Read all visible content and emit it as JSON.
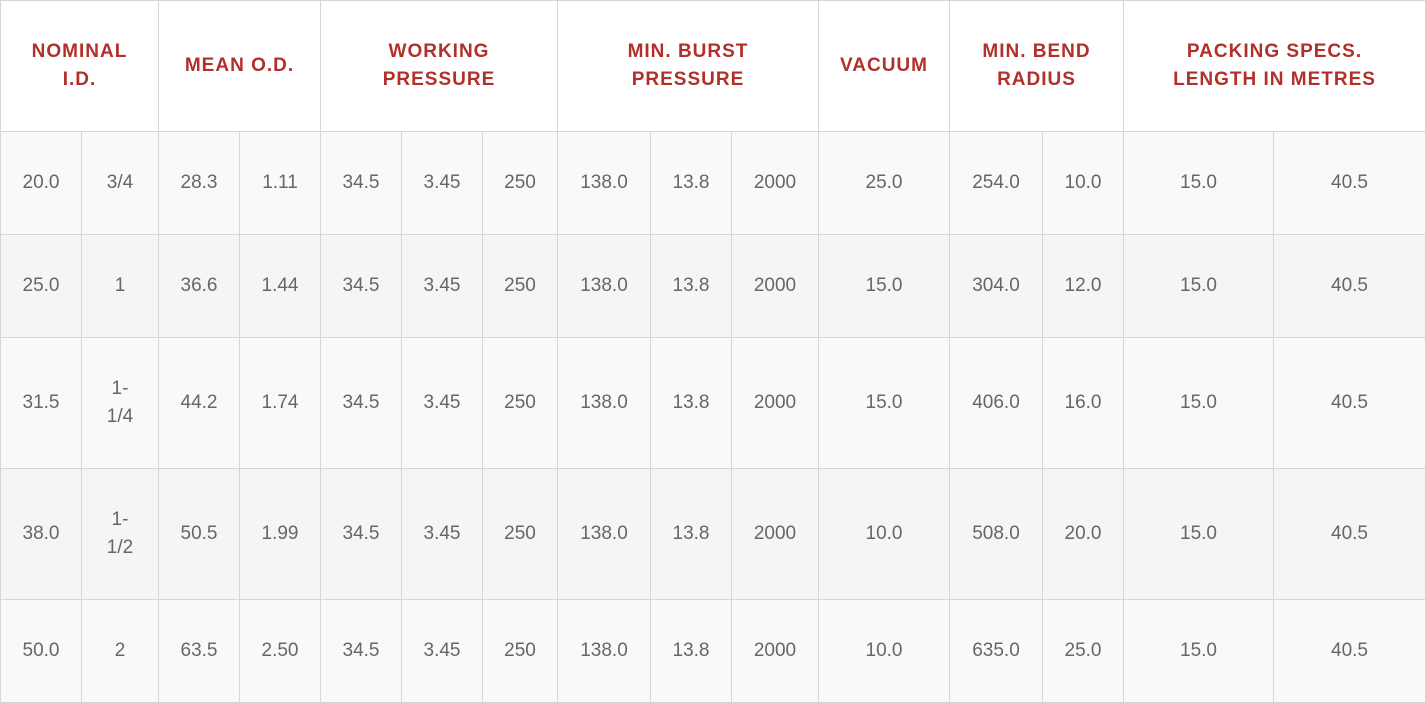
{
  "headers": {
    "nominal_id": [
      "NOMINAL",
      "I.D."
    ],
    "mean_od": [
      "MEAN O.D."
    ],
    "working_pressure": [
      "WORKING",
      "PRESSURE"
    ],
    "min_burst_pressure": [
      "MIN. BURST",
      "PRESSURE"
    ],
    "vacuum": [
      "VACUUM"
    ],
    "min_bend_radius": [
      "MIN. BEND",
      "RADIUS"
    ],
    "packing_specs": [
      "PACKING SPECS.",
      "LENGTH IN METRES"
    ]
  },
  "rows": [
    {
      "nominal_id_mm": "20.0",
      "nominal_id_in": [
        "3/4"
      ],
      "mean_od_mm": "28.3",
      "mean_od_in": "1.11",
      "wp_1": "34.5",
      "wp_2": "3.45",
      "wp_3": "250",
      "bp_1": "138.0",
      "bp_2": "13.8",
      "bp_3": "2000",
      "vacuum": "25.0",
      "bend_1": "254.0",
      "bend_2": "10.0",
      "pack_1": "15.0",
      "pack_2": "40.5"
    },
    {
      "nominal_id_mm": "25.0",
      "nominal_id_in": [
        "1"
      ],
      "mean_od_mm": "36.6",
      "mean_od_in": "1.44",
      "wp_1": "34.5",
      "wp_2": "3.45",
      "wp_3": "250",
      "bp_1": "138.0",
      "bp_2": "13.8",
      "bp_3": "2000",
      "vacuum": "15.0",
      "bend_1": "304.0",
      "bend_2": "12.0",
      "pack_1": "15.0",
      "pack_2": "40.5"
    },
    {
      "nominal_id_mm": "31.5",
      "nominal_id_in": [
        "1-",
        "1/4"
      ],
      "mean_od_mm": "44.2",
      "mean_od_in": "1.74",
      "wp_1": "34.5",
      "wp_2": "3.45",
      "wp_3": "250",
      "bp_1": "138.0",
      "bp_2": "13.8",
      "bp_3": "2000",
      "vacuum": "15.0",
      "bend_1": "406.0",
      "bend_2": "16.0",
      "pack_1": "15.0",
      "pack_2": "40.5"
    },
    {
      "nominal_id_mm": "38.0",
      "nominal_id_in": [
        "1-",
        "1/2"
      ],
      "mean_od_mm": "50.5",
      "mean_od_in": "1.99",
      "wp_1": "34.5",
      "wp_2": "3.45",
      "wp_3": "250",
      "bp_1": "138.0",
      "bp_2": "13.8",
      "bp_3": "2000",
      "vacuum": "10.0",
      "bend_1": "508.0",
      "bend_2": "20.0",
      "pack_1": "15.0",
      "pack_2": "40.5"
    },
    {
      "nominal_id_mm": "50.0",
      "nominal_id_in": [
        "2"
      ],
      "mean_od_mm": "63.5",
      "mean_od_in": "2.50",
      "wp_1": "34.5",
      "wp_2": "3.45",
      "wp_3": "250",
      "bp_1": "138.0",
      "bp_2": "13.8",
      "bp_3": "2000",
      "vacuum": "10.0",
      "bend_1": "635.0",
      "bend_2": "25.0",
      "pack_1": "15.0",
      "pack_2": "40.5"
    }
  ],
  "colors": {
    "header_text": "#b1302a",
    "body_text": "#666666",
    "border": "#d6d6d6",
    "row_fill_light": "#f9f9f9",
    "row_fill_dark": "#f5f5f5"
  }
}
